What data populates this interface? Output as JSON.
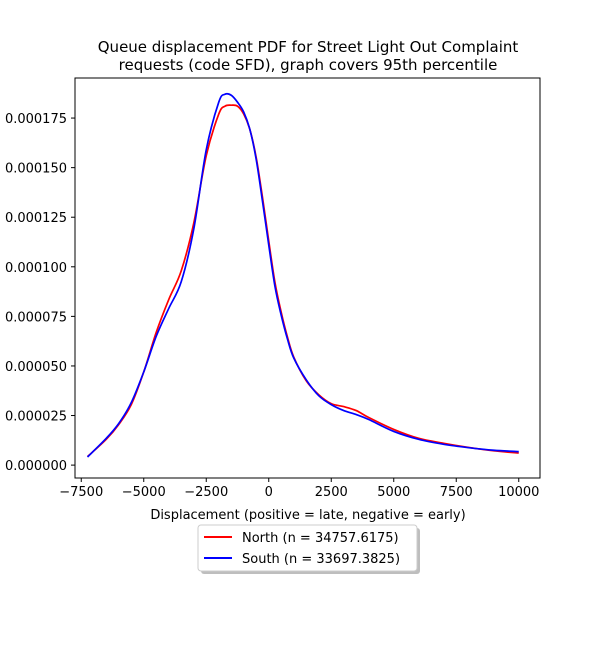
{
  "chart_data": {
    "type": "line",
    "title_lines": [
      "Queue displacement PDF for Street Light Out Complaint",
      "requests (code SFD), graph covers 95th percentile"
    ],
    "xlabel": "Displacement (positive = late, negative = early)",
    "ylabel": "",
    "xlim": [
      -7750,
      10850
    ],
    "ylim": [
      -6.5e-06,
      0.0001952
    ],
    "grid": false,
    "legend_position": "below-center",
    "x_ticks": [
      {
        "value": -7500,
        "label": "−7500"
      },
      {
        "value": -5000,
        "label": "−5000"
      },
      {
        "value": -2500,
        "label": "−2500"
      },
      {
        "value": 0,
        "label": "0"
      },
      {
        "value": 2500,
        "label": "2500"
      },
      {
        "value": 5000,
        "label": "5000"
      },
      {
        "value": 7500,
        "label": "7500"
      },
      {
        "value": 10000,
        "label": "10000"
      }
    ],
    "y_ticks": [
      {
        "value": 0.0,
        "label": "0.000000"
      },
      {
        "value": 2.5e-05,
        "label": "0.000025"
      },
      {
        "value": 5e-05,
        "label": "0.000050"
      },
      {
        "value": 7.5e-05,
        "label": "0.000075"
      },
      {
        "value": 0.0001,
        "label": "0.000100"
      },
      {
        "value": 0.000125,
        "label": "0.000125"
      },
      {
        "value": 0.00015,
        "label": "0.000150"
      },
      {
        "value": 0.000175,
        "label": "0.000175"
      }
    ],
    "series": [
      {
        "name": "North (n = 34757.6175)",
        "color": "#ff0000",
        "x": [
          -7250,
          -6500,
          -6000,
          -5500,
          -5000,
          -4500,
          -4000,
          -3500,
          -3000,
          -2500,
          -2000,
          -1750,
          -1500,
          -1250,
          -1000,
          -750,
          -500,
          -250,
          0,
          250,
          500,
          750,
          1000,
          1500,
          2000,
          2500,
          3000,
          3500,
          4000,
          5000,
          6000,
          7000,
          8000,
          9000,
          10000
        ],
        "y": [
          4.3e-06,
          1.3e-05,
          2.05e-05,
          3.05e-05,
          4.7e-05,
          6.7e-05,
          8.35e-05,
          9.8e-05,
          0.000122,
          0.000156,
          0.000177,
          0.000181,
          0.0001815,
          0.000181,
          0.000177,
          0.000169,
          0.000155,
          0.000135,
          0.000113,
          9.2e-05,
          7.7e-05,
          6.45e-05,
          5.45e-05,
          4.25e-05,
          3.55e-05,
          3.1e-05,
          2.95e-05,
          2.75e-05,
          2.4e-05,
          1.8e-05,
          1.35e-05,
          1.1e-05,
          8.9e-06,
          7.2e-06,
          6.1e-06
        ]
      },
      {
        "name": "South (n = 33697.3825)",
        "color": "#0000ff",
        "x": [
          -7250,
          -6500,
          -6000,
          -5500,
          -5000,
          -4500,
          -4000,
          -3500,
          -3000,
          -2500,
          -2000,
          -1750,
          -1500,
          -1250,
          -1000,
          -750,
          -500,
          -250,
          0,
          250,
          500,
          750,
          1000,
          1500,
          2000,
          2500,
          3000,
          3500,
          4000,
          5000,
          6000,
          7000,
          8000,
          9000,
          10000
        ],
        "y": [
          4.1e-06,
          1.35e-05,
          2.1e-05,
          3.15e-05,
          4.7e-05,
          6.5e-05,
          7.9e-05,
          9.25e-05,
          0.000119,
          0.000159,
          0.000183,
          0.000187,
          0.0001865,
          0.000183,
          0.000178,
          0.000169,
          0.000154,
          0.000133,
          0.000111,
          9e-05,
          7.55e-05,
          6.35e-05,
          5.4e-05,
          4.3e-05,
          3.5e-05,
          3.05e-05,
          2.75e-05,
          2.55e-05,
          2.3e-05,
          1.7e-05,
          1.3e-05,
          1.05e-05,
          8.8e-06,
          7.5e-06,
          6.8e-06
        ]
      }
    ]
  }
}
